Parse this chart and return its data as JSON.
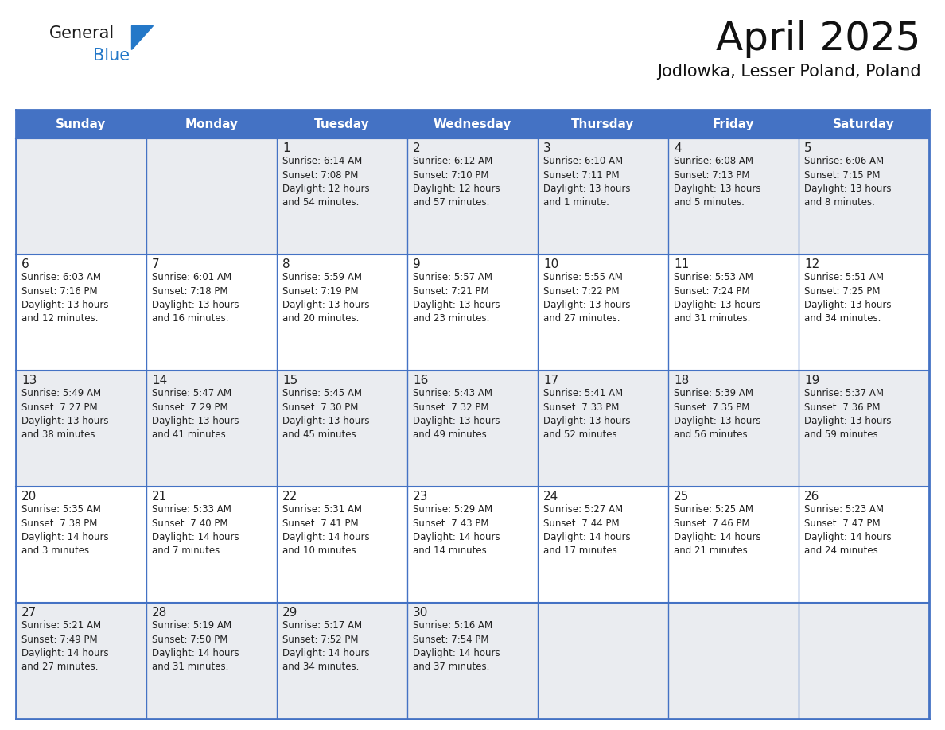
{
  "title": "April 2025",
  "subtitle": "Jodlowka, Lesser Poland, Poland",
  "days_of_week": [
    "Sunday",
    "Monday",
    "Tuesday",
    "Wednesday",
    "Thursday",
    "Friday",
    "Saturday"
  ],
  "header_bg": "#4472C4",
  "header_text": "#FFFFFF",
  "cell_bg_odd": "#EAECF0",
  "cell_bg_even": "#FFFFFF",
  "border_color": "#4472C4",
  "text_color": "#222222",
  "title_color": "#111111",
  "logo_general_color": "#1a1a1a",
  "logo_blue_color": "#2478C8",
  "weeks": [
    [
      {
        "day": null,
        "info": ""
      },
      {
        "day": null,
        "info": ""
      },
      {
        "day": 1,
        "info": "Sunrise: 6:14 AM\nSunset: 7:08 PM\nDaylight: 12 hours\nand 54 minutes."
      },
      {
        "day": 2,
        "info": "Sunrise: 6:12 AM\nSunset: 7:10 PM\nDaylight: 12 hours\nand 57 minutes."
      },
      {
        "day": 3,
        "info": "Sunrise: 6:10 AM\nSunset: 7:11 PM\nDaylight: 13 hours\nand 1 minute."
      },
      {
        "day": 4,
        "info": "Sunrise: 6:08 AM\nSunset: 7:13 PM\nDaylight: 13 hours\nand 5 minutes."
      },
      {
        "day": 5,
        "info": "Sunrise: 6:06 AM\nSunset: 7:15 PM\nDaylight: 13 hours\nand 8 minutes."
      }
    ],
    [
      {
        "day": 6,
        "info": "Sunrise: 6:03 AM\nSunset: 7:16 PM\nDaylight: 13 hours\nand 12 minutes."
      },
      {
        "day": 7,
        "info": "Sunrise: 6:01 AM\nSunset: 7:18 PM\nDaylight: 13 hours\nand 16 minutes."
      },
      {
        "day": 8,
        "info": "Sunrise: 5:59 AM\nSunset: 7:19 PM\nDaylight: 13 hours\nand 20 minutes."
      },
      {
        "day": 9,
        "info": "Sunrise: 5:57 AM\nSunset: 7:21 PM\nDaylight: 13 hours\nand 23 minutes."
      },
      {
        "day": 10,
        "info": "Sunrise: 5:55 AM\nSunset: 7:22 PM\nDaylight: 13 hours\nand 27 minutes."
      },
      {
        "day": 11,
        "info": "Sunrise: 5:53 AM\nSunset: 7:24 PM\nDaylight: 13 hours\nand 31 minutes."
      },
      {
        "day": 12,
        "info": "Sunrise: 5:51 AM\nSunset: 7:25 PM\nDaylight: 13 hours\nand 34 minutes."
      }
    ],
    [
      {
        "day": 13,
        "info": "Sunrise: 5:49 AM\nSunset: 7:27 PM\nDaylight: 13 hours\nand 38 minutes."
      },
      {
        "day": 14,
        "info": "Sunrise: 5:47 AM\nSunset: 7:29 PM\nDaylight: 13 hours\nand 41 minutes."
      },
      {
        "day": 15,
        "info": "Sunrise: 5:45 AM\nSunset: 7:30 PM\nDaylight: 13 hours\nand 45 minutes."
      },
      {
        "day": 16,
        "info": "Sunrise: 5:43 AM\nSunset: 7:32 PM\nDaylight: 13 hours\nand 49 minutes."
      },
      {
        "day": 17,
        "info": "Sunrise: 5:41 AM\nSunset: 7:33 PM\nDaylight: 13 hours\nand 52 minutes."
      },
      {
        "day": 18,
        "info": "Sunrise: 5:39 AM\nSunset: 7:35 PM\nDaylight: 13 hours\nand 56 minutes."
      },
      {
        "day": 19,
        "info": "Sunrise: 5:37 AM\nSunset: 7:36 PM\nDaylight: 13 hours\nand 59 minutes."
      }
    ],
    [
      {
        "day": 20,
        "info": "Sunrise: 5:35 AM\nSunset: 7:38 PM\nDaylight: 14 hours\nand 3 minutes."
      },
      {
        "day": 21,
        "info": "Sunrise: 5:33 AM\nSunset: 7:40 PM\nDaylight: 14 hours\nand 7 minutes."
      },
      {
        "day": 22,
        "info": "Sunrise: 5:31 AM\nSunset: 7:41 PM\nDaylight: 14 hours\nand 10 minutes."
      },
      {
        "day": 23,
        "info": "Sunrise: 5:29 AM\nSunset: 7:43 PM\nDaylight: 14 hours\nand 14 minutes."
      },
      {
        "day": 24,
        "info": "Sunrise: 5:27 AM\nSunset: 7:44 PM\nDaylight: 14 hours\nand 17 minutes."
      },
      {
        "day": 25,
        "info": "Sunrise: 5:25 AM\nSunset: 7:46 PM\nDaylight: 14 hours\nand 21 minutes."
      },
      {
        "day": 26,
        "info": "Sunrise: 5:23 AM\nSunset: 7:47 PM\nDaylight: 14 hours\nand 24 minutes."
      }
    ],
    [
      {
        "day": 27,
        "info": "Sunrise: 5:21 AM\nSunset: 7:49 PM\nDaylight: 14 hours\nand 27 minutes."
      },
      {
        "day": 28,
        "info": "Sunrise: 5:19 AM\nSunset: 7:50 PM\nDaylight: 14 hours\nand 31 minutes."
      },
      {
        "day": 29,
        "info": "Sunrise: 5:17 AM\nSunset: 7:52 PM\nDaylight: 14 hours\nand 34 minutes."
      },
      {
        "day": 30,
        "info": "Sunrise: 5:16 AM\nSunset: 7:54 PM\nDaylight: 14 hours\nand 37 minutes."
      },
      {
        "day": null,
        "info": ""
      },
      {
        "day": null,
        "info": ""
      },
      {
        "day": null,
        "info": ""
      }
    ]
  ]
}
